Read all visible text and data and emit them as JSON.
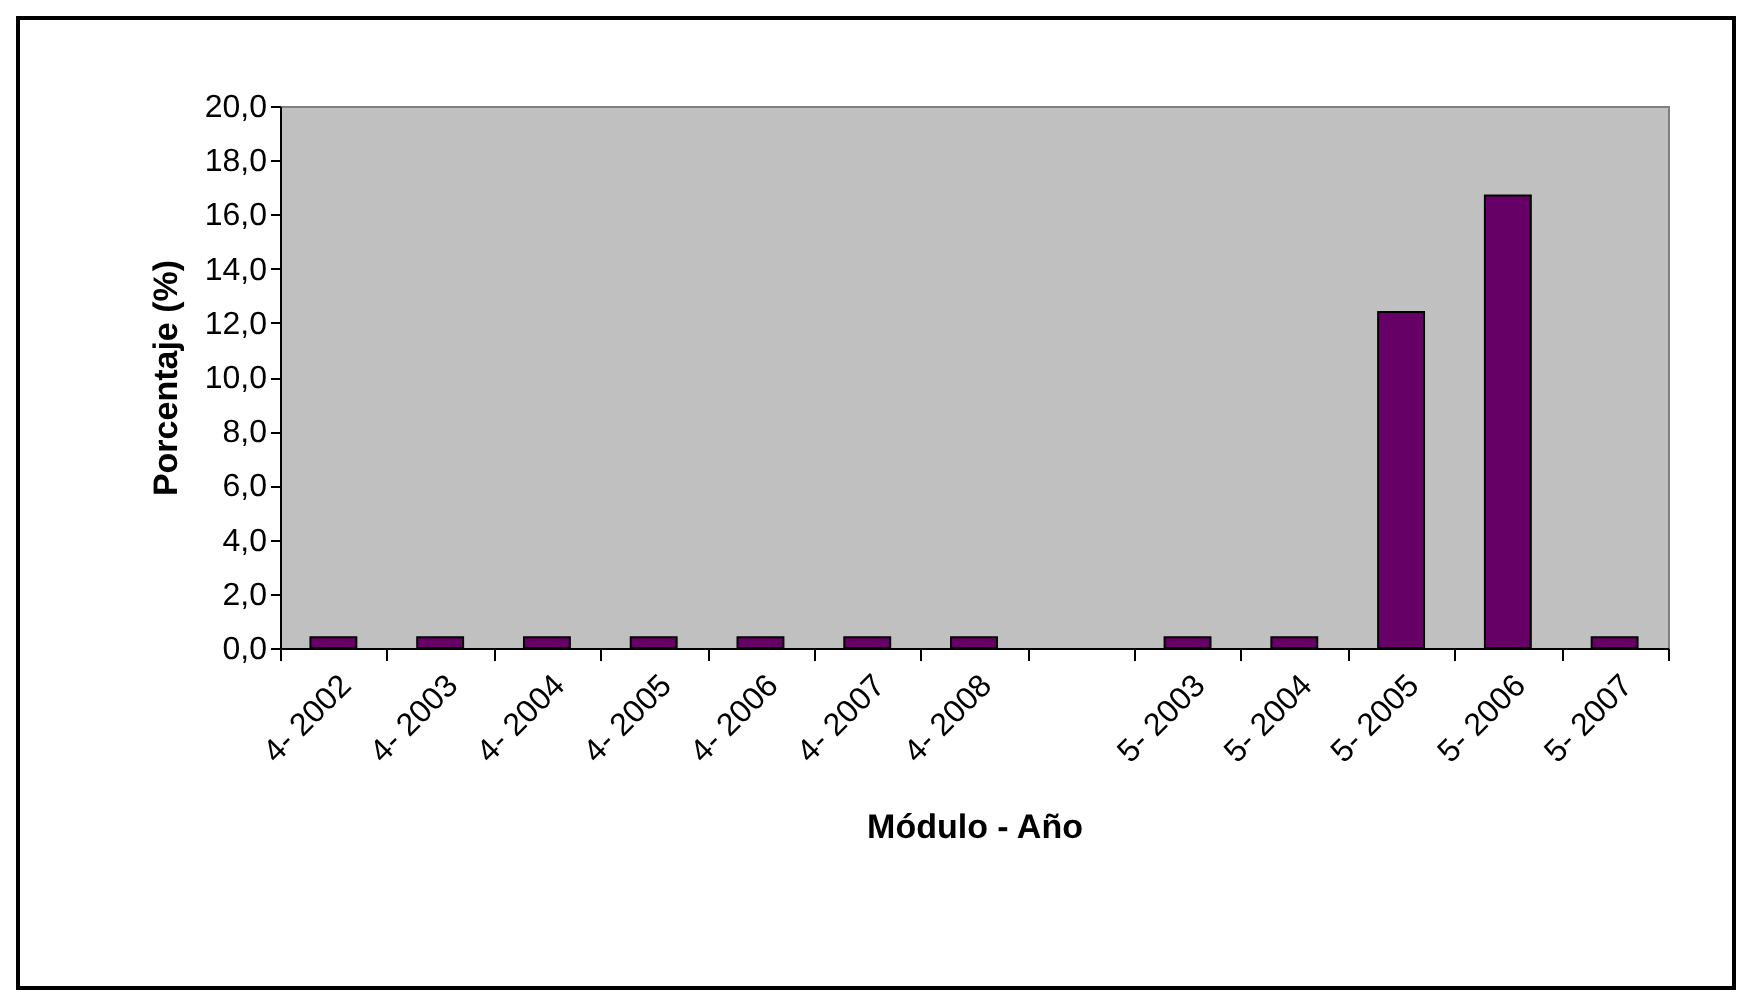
{
  "chart_data": {
    "type": "bar",
    "xlabel": "Módulo - Año",
    "ylabel": "Porcentaje (%)",
    "categories": [
      "4- 2002",
      "4- 2003",
      "4- 2004",
      "4- 2005",
      "4- 2006",
      "4- 2007",
      "4- 2008",
      null,
      "5- 2003",
      "5- 2004",
      "5- 2005",
      "5- 2006",
      "5- 2007"
    ],
    "values": [
      0.4,
      0.4,
      0.4,
      0.4,
      0.4,
      0.4,
      0.4,
      null,
      0.4,
      0.4,
      12.4,
      16.7,
      0.4
    ],
    "color": "#660066",
    "ylim": [
      0,
      20
    ],
    "yticks": [
      {
        "value": 0,
        "label": "0,0"
      },
      {
        "value": 2,
        "label": "2,0"
      },
      {
        "value": 4,
        "label": "4,0"
      },
      {
        "value": 6,
        "label": "6,0"
      },
      {
        "value": 8,
        "label": "8,0"
      },
      {
        "value": 10,
        "label": "10,0"
      },
      {
        "value": 12,
        "label": "12,0"
      },
      {
        "value": 14,
        "label": "14,0"
      },
      {
        "value": 16,
        "label": "16,0"
      },
      {
        "value": 18,
        "label": "18,0"
      },
      {
        "value": 20,
        "label": "20,0"
      }
    ],
    "grid": false
  }
}
